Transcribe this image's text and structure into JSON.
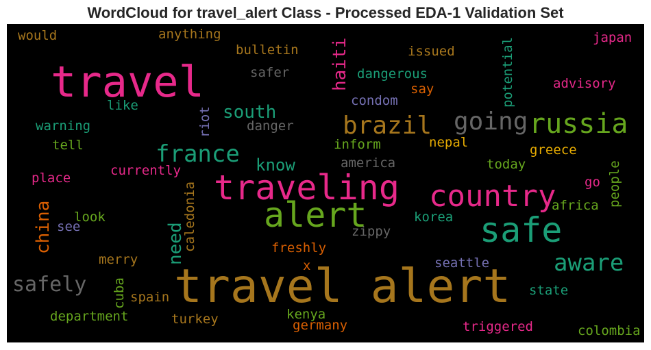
{
  "title": "WordCloud for travel_alert Class - Processed EDA-1 Validation Set",
  "words": {
    "would": {
      "text": "would",
      "color": "#a6761d"
    },
    "anything": {
      "text": "anything",
      "color": "#a6761d"
    },
    "bulletin": {
      "text": "bulletin",
      "color": "#a6761d"
    },
    "haiti": {
      "text": "haiti",
      "color": "#e7298a"
    },
    "issued": {
      "text": "issued",
      "color": "#a6761d"
    },
    "japan": {
      "text": "japan",
      "color": "#e7298a"
    },
    "travel": {
      "text": "travel",
      "color": "#e7298a"
    },
    "safer": {
      "text": "safer",
      "color": "#666666"
    },
    "dangerous": {
      "text": "dangerous",
      "color": "#1b9e77"
    },
    "potential": {
      "text": "potential",
      "color": "#1b9e77"
    },
    "advisory": {
      "text": "advisory",
      "color": "#e7298a"
    },
    "say": {
      "text": "say",
      "color": "#d95f02"
    },
    "condom": {
      "text": "condom",
      "color": "#7570b3"
    },
    "like": {
      "text": "like",
      "color": "#1b9e77"
    },
    "south": {
      "text": "south",
      "color": "#1b9e77"
    },
    "going": {
      "text": "going",
      "color": "#666666"
    },
    "russia": {
      "text": "russia",
      "color": "#66a61e"
    },
    "riot": {
      "text": "riot",
      "color": "#7570b3"
    },
    "brazil": {
      "text": "brazil",
      "color": "#a6761d"
    },
    "warning": {
      "text": "warning",
      "color": "#1b9e77"
    },
    "danger": {
      "text": "danger",
      "color": "#666666"
    },
    "tell": {
      "text": "tell",
      "color": "#66a61e"
    },
    "inform": {
      "text": "inform",
      "color": "#66a61e"
    },
    "nepal": {
      "text": "nepal",
      "color": "#e6ab02"
    },
    "greece": {
      "text": "greece",
      "color": "#e6ab02"
    },
    "france": {
      "text": "france",
      "color": "#1b9e77"
    },
    "know": {
      "text": "know",
      "color": "#1b9e77"
    },
    "america": {
      "text": "america",
      "color": "#666666"
    },
    "today": {
      "text": "today",
      "color": "#66a61e"
    },
    "currently": {
      "text": "currently",
      "color": "#e7298a"
    },
    "place": {
      "text": "place",
      "color": "#e7298a"
    },
    "traveling": {
      "text": "traveling",
      "color": "#e7298a"
    },
    "country": {
      "text": "country",
      "color": "#e7298a"
    },
    "people": {
      "text": "people",
      "color": "#66a61e"
    },
    "go": {
      "text": "go",
      "color": "#e7298a"
    },
    "caledonia": {
      "text": "caledonia",
      "color": "#a6761d"
    },
    "china": {
      "text": "china",
      "color": "#d95f02"
    },
    "alert": {
      "text": "alert",
      "color": "#66a61e"
    },
    "africa": {
      "text": "africa",
      "color": "#66a61e"
    },
    "look": {
      "text": "look",
      "color": "#66a61e"
    },
    "korea": {
      "text": "korea",
      "color": "#1b9e77"
    },
    "need": {
      "text": "need",
      "color": "#1b9e77"
    },
    "see": {
      "text": "see",
      "color": "#7570b3"
    },
    "safe": {
      "text": "safe",
      "color": "#1b9e77"
    },
    "zippy": {
      "text": "zippy",
      "color": "#666666"
    },
    "freshly": {
      "text": "freshly",
      "color": "#d95f02"
    },
    "merry": {
      "text": "merry",
      "color": "#a6761d"
    },
    "aware": {
      "text": "aware",
      "color": "#1b9e77"
    },
    "x": {
      "text": "x",
      "color": "#d95f02"
    },
    "seattle": {
      "text": "seattle",
      "color": "#7570b3"
    },
    "safely": {
      "text": "safely",
      "color": "#666666"
    },
    "travel_alert": {
      "text": "travel alert",
      "color": "#a6761d"
    },
    "cuba": {
      "text": "cuba",
      "color": "#66a61e"
    },
    "spain": {
      "text": "spain",
      "color": "#a6761d"
    },
    "state": {
      "text": "state",
      "color": "#1b9e77"
    },
    "department": {
      "text": "department",
      "color": "#66a61e"
    },
    "turkey": {
      "text": "turkey",
      "color": "#a6761d"
    },
    "kenya": {
      "text": "kenya",
      "color": "#66a61e"
    },
    "germany": {
      "text": "germany",
      "color": "#d95f02"
    },
    "triggered": {
      "text": "triggered",
      "color": "#e7298a"
    },
    "colombia": {
      "text": "colombia",
      "color": "#66a61e"
    }
  }
}
